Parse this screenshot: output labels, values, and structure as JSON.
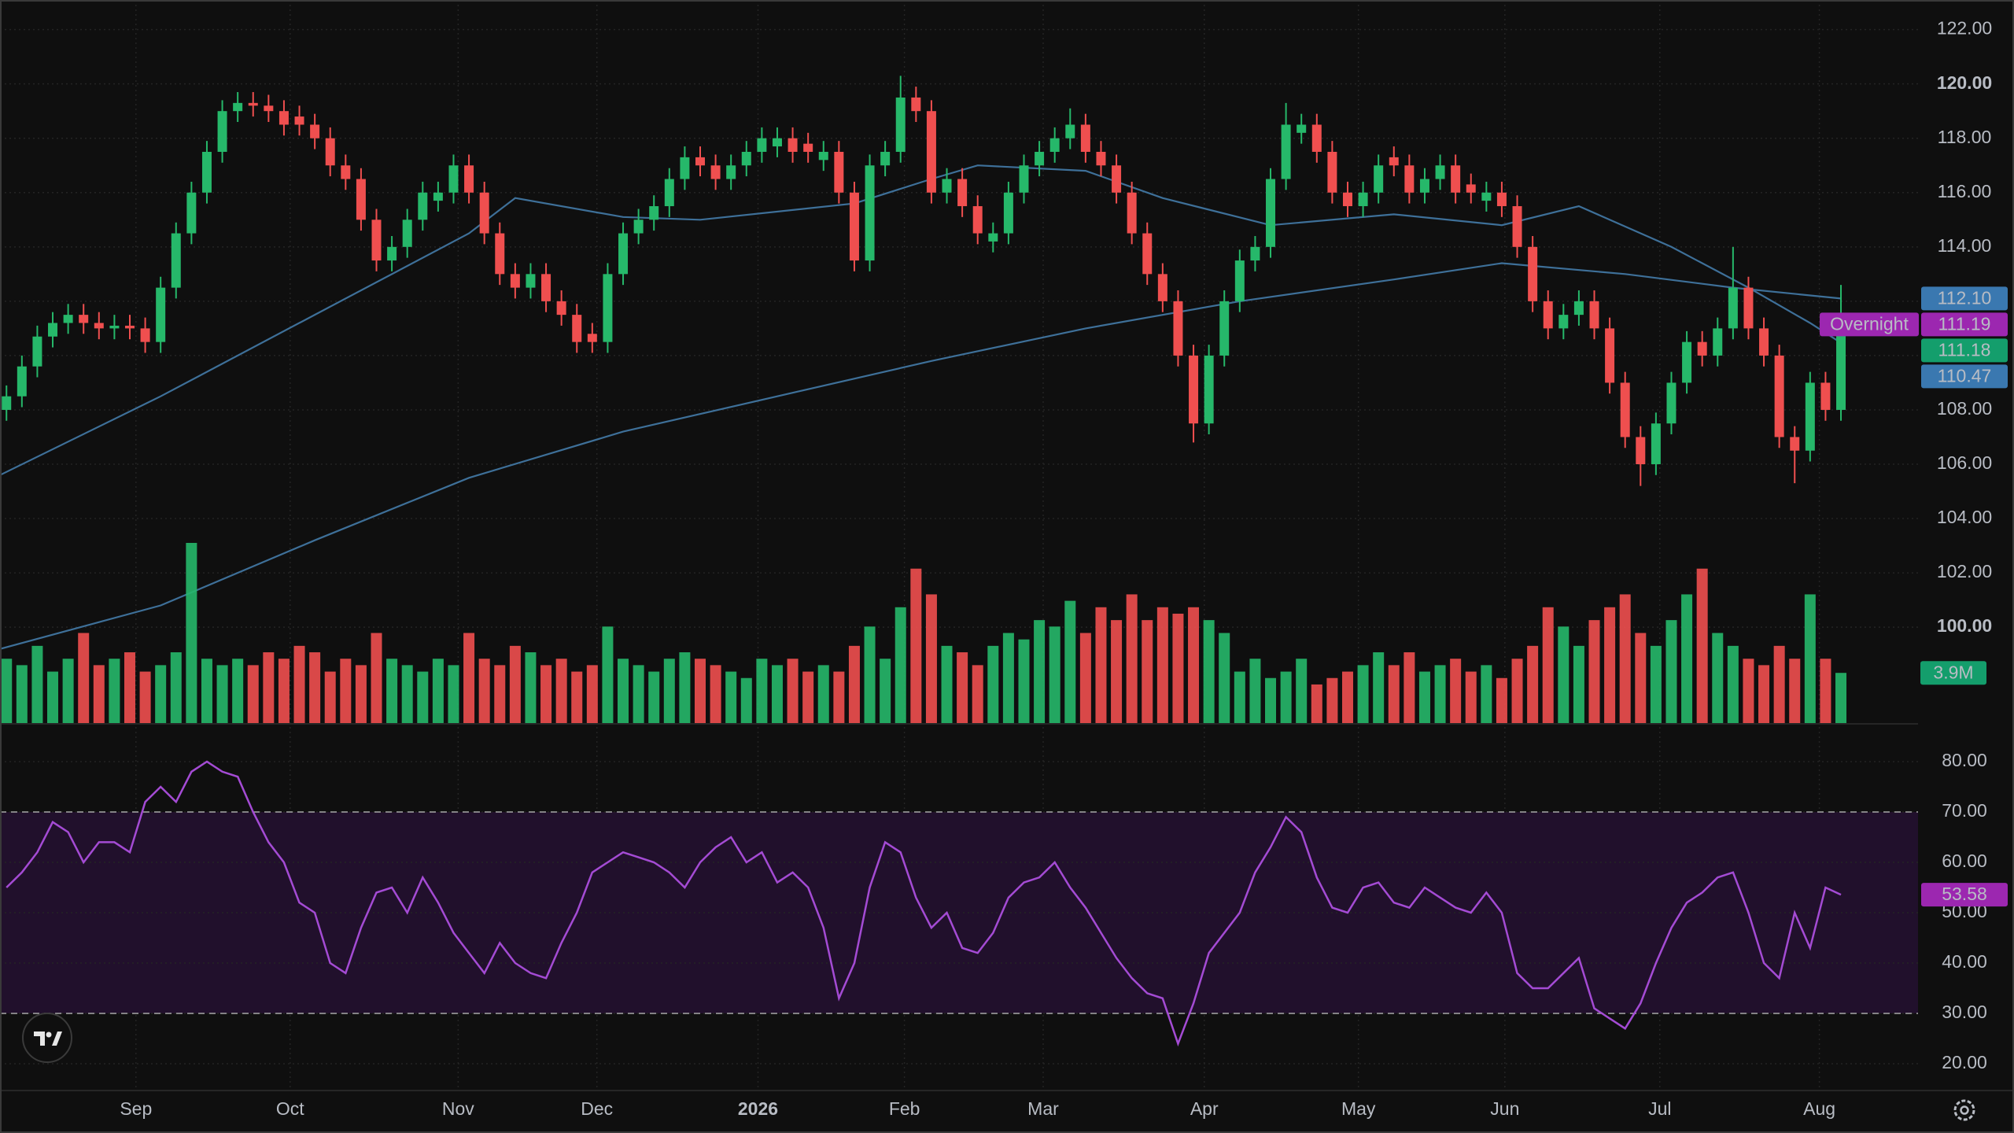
{
  "chart_data": [
    {
      "type": "candlestick",
      "grid": true,
      "up_color": "#26b86a",
      "down_color": "#ef4f4f",
      "xlim": [
        -0.42,
        124
      ],
      "xticks": [
        {
          "value": 8.4,
          "label": "Sep"
        },
        {
          "value": 18.4,
          "label": "Oct"
        },
        {
          "value": 29.3,
          "label": "Nov"
        },
        {
          "value": 38.3,
          "label": "Dec"
        },
        {
          "value": 48.75,
          "label": "2026",
          "bold": true
        },
        {
          "value": 58.25,
          "label": "Feb"
        },
        {
          "value": 67.25,
          "label": "Mar"
        },
        {
          "value": 77.7,
          "label": "Apr"
        },
        {
          "value": 87.7,
          "label": "May"
        },
        {
          "value": 97.2,
          "label": "Jun"
        },
        {
          "value": 107.25,
          "label": "Jul"
        },
        {
          "value": 117.6,
          "label": "Aug"
        }
      ],
      "ylim": [
        96.47,
        123.09
      ],
      "yticks": [
        {
          "value": 100,
          "label": "100.00",
          "bold": true
        },
        {
          "value": 102,
          "label": "102.00"
        },
        {
          "value": 104,
          "label": "104.00"
        },
        {
          "value": 106,
          "label": "106.00"
        },
        {
          "value": 108,
          "label": "108.00"
        },
        {
          "value": 110,
          "label": "110.00"
        },
        {
          "value": 112,
          "label": "112.00"
        },
        {
          "value": 114,
          "label": "114.00"
        },
        {
          "value": 116,
          "label": "116.00"
        },
        {
          "value": 118,
          "label": "118.00"
        },
        {
          "value": 120,
          "label": "120.00",
          "bold": true
        },
        {
          "value": 122,
          "label": "122.00"
        }
      ],
      "open": [
        108.0,
        108.5,
        109.6,
        110.7,
        111.2,
        111.5,
        111.2,
        111,
        111.1,
        111,
        110.5,
        112.5,
        114.5,
        116,
        117.5,
        119,
        119.3,
        119.2,
        119,
        118.8,
        118.5,
        118,
        117,
        116.5,
        115,
        113.5,
        114,
        115,
        115.7,
        116,
        117,
        116,
        114.5,
        113,
        112.5,
        113,
        112,
        111.5,
        110.8,
        110.5,
        113,
        114.5,
        115,
        115.5,
        116.5,
        117.3,
        117,
        116.5,
        117,
        117.5,
        117.7,
        118,
        117.8,
        117.2,
        117.5,
        116,
        113.5,
        117,
        117.5,
        119.5,
        119,
        116,
        116.5,
        115.5,
        114.2,
        114.5,
        116,
        117,
        117.5,
        118,
        118.5,
        117.5,
        117,
        116,
        114.5,
        113,
        112,
        110,
        107.5,
        110,
        112,
        113.5,
        114,
        116.5,
        118.2,
        118.5,
        117.5,
        116,
        115.5,
        116,
        117.3,
        117,
        116,
        116.5,
        117,
        116.3,
        115.7,
        116,
        115.5,
        114,
        112,
        111,
        111.5,
        112,
        111,
        109,
        107,
        106,
        107.5,
        109,
        110.5,
        110,
        111,
        112.5,
        111,
        110,
        107,
        106.5,
        109,
        108
      ],
      "high": [
        108.9,
        110.0,
        111.1,
        111.6,
        111.9,
        111.9,
        111.6,
        111.5,
        111.5,
        111.4,
        112.9,
        114.9,
        116.4,
        117.9,
        119.4,
        119.7,
        119.7,
        119.6,
        119.4,
        119.2,
        118.9,
        118.4,
        117.4,
        116.9,
        115.4,
        114.4,
        115.4,
        116.4,
        116.4,
        117.4,
        117.4,
        116.4,
        114.9,
        113.4,
        113.4,
        113.4,
        112.4,
        111.9,
        111.2,
        113.4,
        114.9,
        115.4,
        115.9,
        116.9,
        117.7,
        117.7,
        117.4,
        117.4,
        117.9,
        118.4,
        118.4,
        118.4,
        118.2,
        117.9,
        117.9,
        116.4,
        117.4,
        117.9,
        120.3,
        119.9,
        119.4,
        116.9,
        116.9,
        115.9,
        114.9,
        116.4,
        117.4,
        117.9,
        118.4,
        119.1,
        118.9,
        117.9,
        117.4,
        116.4,
        114.9,
        113.4,
        112.4,
        110.4,
        110.4,
        112.4,
        113.9,
        114.4,
        116.9,
        119.3,
        118.9,
        118.9,
        117.9,
        116.4,
        116.4,
        117.4,
        117.7,
        117.4,
        116.9,
        117.4,
        117.4,
        116.7,
        116.4,
        116.4,
        115.9,
        114.4,
        112.4,
        111.9,
        112.4,
        112.4,
        111.4,
        109.4,
        107.4,
        107.9,
        109.4,
        110.9,
        110.9,
        111.4,
        114.0,
        112.9,
        111.4,
        110.4,
        107.4,
        109.4,
        109.4,
        112.6
      ],
      "low": [
        107.6,
        108.1,
        109.2,
        110.3,
        110.8,
        110.8,
        110.6,
        110.6,
        110.6,
        110.1,
        110.1,
        112.1,
        114.1,
        115.6,
        117.1,
        118.6,
        118.8,
        118.6,
        118.1,
        118.1,
        117.6,
        116.6,
        116.1,
        114.6,
        113.1,
        113.1,
        113.6,
        114.6,
        115.3,
        115.6,
        115.6,
        114.1,
        112.6,
        112.1,
        112.1,
        111.6,
        111.1,
        110.1,
        110.1,
        110.1,
        112.6,
        114.1,
        114.6,
        115.1,
        116.1,
        116.6,
        116.1,
        116.1,
        116.6,
        117.1,
        117.3,
        117.1,
        117.1,
        116.8,
        115.6,
        113.1,
        113.1,
        116.6,
        117.1,
        118.6,
        115.6,
        115.6,
        115.1,
        114.1,
        113.8,
        114.1,
        115.6,
        116.6,
        117.1,
        117.6,
        117.1,
        116.6,
        115.6,
        114.1,
        112.6,
        111.6,
        109.6,
        106.8,
        107.1,
        109.6,
        111.6,
        113.1,
        113.6,
        116.1,
        117.8,
        117.1,
        115.6,
        115.1,
        115.1,
        115.6,
        116.6,
        115.6,
        115.6,
        116.1,
        115.6,
        115.6,
        115.3,
        115.1,
        113.6,
        111.6,
        110.6,
        110.6,
        111.1,
        110.6,
        108.6,
        106.6,
        105.2,
        105.6,
        107.1,
        108.6,
        109.6,
        109.6,
        110.6,
        110.6,
        109.6,
        106.6,
        105.3,
        106.1,
        107.6,
        107.6
      ],
      "close": [
        108.5,
        109.6,
        110.7,
        111.2,
        111.5,
        111.2,
        111,
        111.1,
        111,
        110.5,
        112.5,
        114.5,
        116,
        117.5,
        119,
        119.3,
        119.2,
        119,
        118.5,
        118.5,
        118,
        117,
        116.5,
        115,
        113.5,
        114,
        115,
        116,
        116,
        117,
        116,
        114.5,
        113,
        112.5,
        113,
        112,
        111.5,
        110.5,
        110.5,
        113,
        114.5,
        115,
        115.5,
        116.5,
        117.3,
        117,
        116.5,
        117,
        117.5,
        118,
        118,
        117.5,
        117.5,
        117.5,
        116,
        113.5,
        117,
        117.5,
        119.5,
        119,
        116,
        116.5,
        115.5,
        114.5,
        114.5,
        116,
        117,
        117.5,
        118,
        118.5,
        117.5,
        117,
        116,
        114.5,
        113,
        112,
        110,
        107.5,
        110,
        112,
        113.5,
        114,
        116.5,
        118.5,
        118.5,
        117.5,
        116,
        115.5,
        116,
        117,
        117,
        116,
        116.5,
        117,
        116,
        116,
        116,
        115.5,
        114,
        112,
        111,
        111.5,
        112,
        111,
        109,
        107,
        106,
        107.5,
        109,
        110.5,
        110,
        111,
        112.5,
        111,
        110,
        107,
        106.5,
        109,
        108,
        111.18
      ],
      "series": [
        {
          "color": "#3e7099",
          "x": [
            -0.42,
            10,
            20,
            30,
            33,
            40,
            45,
            55,
            60,
            63,
            70,
            75,
            82,
            90,
            97,
            102,
            108,
            113,
            117,
            119
          ],
          "values": [
            105.6,
            108.5,
            111.5,
            114.5,
            115.8,
            115.1,
            115,
            115.6,
            116.5,
            117,
            116.8,
            115.8,
            114.8,
            115.2,
            114.8,
            115.5,
            114,
            112.5,
            111.2,
            110.47
          ]
        },
        {
          "color": "#3e7099",
          "x": [
            -0.42,
            10,
            20,
            30,
            40,
            50,
            60,
            70,
            80,
            90,
            97,
            105,
            112,
            119
          ],
          "values": [
            99.2,
            100.8,
            103.2,
            105.5,
            107.2,
            108.5,
            109.8,
            111,
            112,
            112.8,
            113.4,
            113,
            112.5,
            112.1
          ]
        }
      ],
      "markers": [
        {
          "value": 112.1,
          "label": "112.10",
          "color": "#3a78b0"
        },
        {
          "value": 111.19,
          "label": "111.19",
          "note": "Overnight",
          "color": "#9c27b0"
        },
        {
          "value": 111.18,
          "label": "111.18",
          "color": "#149e6c"
        },
        {
          "value": 110.47,
          "label": "110.47",
          "color": "#3a78b0"
        }
      ]
    },
    {
      "type": "bar",
      "up_color": "#26b86a",
      "down_color": "#ef4f4f",
      "values": [
        5,
        4.5,
        6,
        4,
        5,
        7,
        4.5,
        5,
        5.5,
        4,
        4.5,
        5.5,
        14,
        5,
        4.5,
        5,
        4.5,
        5.5,
        5,
        6,
        5.5,
        4,
        5,
        4.5,
        7,
        5,
        4.5,
        4,
        5,
        4.5,
        7,
        5,
        4.5,
        6,
        5.5,
        4.5,
        5,
        4,
        4.5,
        7.5,
        5,
        4.5,
        4,
        5,
        5.5,
        5,
        4.5,
        4,
        3.5,
        5,
        4.5,
        5,
        4,
        4.5,
        4,
        6,
        7.5,
        5,
        9,
        12,
        10,
        6,
        5.5,
        4.5,
        6,
        7,
        6.5,
        8,
        7.5,
        9.5,
        7,
        9,
        8,
        10,
        8,
        9,
        8.5,
        9,
        8,
        7,
        4,
        5,
        3.5,
        4,
        5,
        3,
        3.5,
        4,
        4.5,
        5.5,
        4.5,
        5.5,
        4,
        4.5,
        5,
        4,
        4.5,
        3.5,
        5,
        6,
        9,
        7.5,
        6,
        8,
        9,
        10,
        7,
        6,
        8,
        10,
        12,
        7,
        6,
        5,
        4.5,
        6,
        5,
        10,
        5,
        3.9
      ],
      "marker": {
        "value": 3.9,
        "label": "3.9M",
        "color": "#149e6c"
      }
    },
    {
      "type": "line",
      "color": "#a44bd4",
      "band_color": "#21102c",
      "grid": true,
      "ylim": [
        14.84,
        87.5
      ],
      "band": [
        30,
        70
      ],
      "yticks": [
        {
          "value": 20,
          "label": "20.00"
        },
        {
          "value": 30,
          "label": "30.00"
        },
        {
          "value": 40,
          "label": "40.00"
        },
        {
          "value": 50,
          "label": "50.00"
        },
        {
          "value": 60,
          "label": "60.00"
        },
        {
          "value": 70,
          "label": "70.00"
        },
        {
          "value": 80,
          "label": "80.00"
        }
      ],
      "values": [
        55,
        58,
        62,
        68,
        66,
        60,
        64,
        64,
        62,
        72,
        75,
        72,
        78,
        80,
        78,
        77,
        70,
        64,
        60,
        52,
        50,
        40,
        38,
        47,
        54,
        55,
        50,
        57,
        52,
        46,
        42,
        38,
        44,
        40,
        38,
        37,
        44,
        50,
        58,
        60,
        62,
        61,
        60,
        58,
        55,
        60,
        63,
        65,
        60,
        62,
        56,
        58,
        55,
        47,
        33,
        40,
        55,
        64,
        62,
        53,
        47,
        50,
        43,
        42,
        46,
        53,
        56,
        57,
        60,
        55,
        51,
        46,
        41,
        37,
        34,
        33,
        24,
        32,
        42,
        46,
        50,
        58,
        63,
        69,
        66,
        57,
        51,
        50,
        55,
        56,
        52,
        51,
        55,
        53,
        51,
        50,
        54,
        50,
        38,
        35,
        35,
        38,
        41,
        31,
        29,
        27,
        32,
        40,
        47,
        52,
        54,
        57,
        58,
        50,
        40,
        37,
        50,
        43,
        55,
        53.58
      ],
      "marker": {
        "color": "#9c27b0"
      }
    }
  ]
}
